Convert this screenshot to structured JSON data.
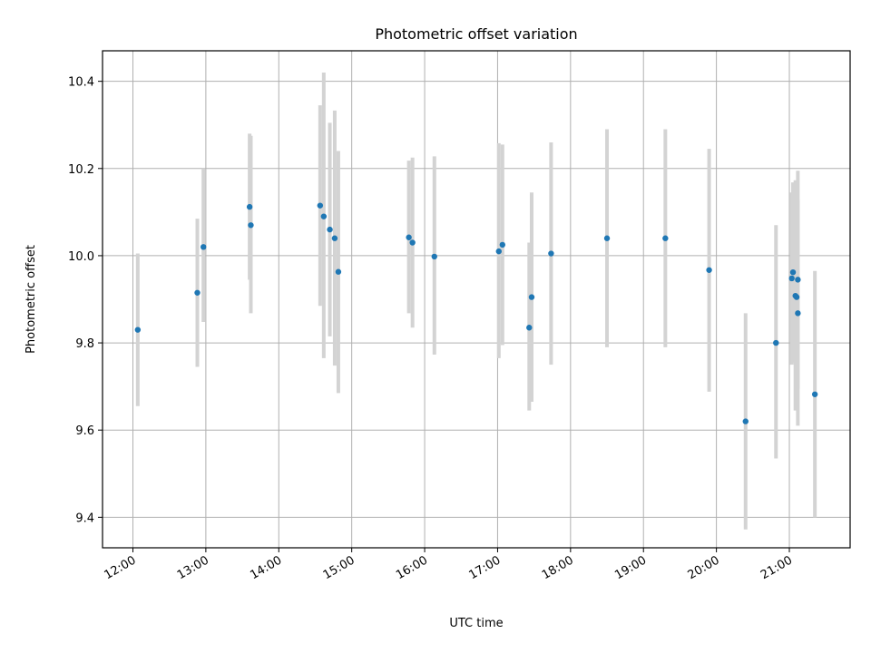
{
  "chart_data": {
    "type": "scatter",
    "title": "Photometric offset variation",
    "xlabel": "UTC time",
    "ylabel": "Photometric offset",
    "x_ticks": [
      "12:00",
      "13:00",
      "14:00",
      "15:00",
      "16:00",
      "17:00",
      "18:00",
      "19:00",
      "20:00",
      "21:00"
    ],
    "y_ticks": [
      "9.4",
      "9.6",
      "9.8",
      "10.0",
      "10.2",
      "10.4"
    ],
    "xlim": [
      "11:35",
      "21:50"
    ],
    "ylim": [
      9.33,
      10.47
    ],
    "grid": true,
    "series": [
      {
        "points": [
          {
            "t": "12:04",
            "y": 9.83,
            "lo": 9.655,
            "hi": 10.005
          },
          {
            "t": "12:53",
            "y": 9.915,
            "lo": 9.745,
            "hi": 10.085
          },
          {
            "t": "12:58",
            "y": 10.02,
            "lo": 9.848,
            "hi": 10.2
          },
          {
            "t": "13:36",
            "y": 10.112,
            "lo": 9.945,
            "hi": 10.28
          },
          {
            "t": "13:37",
            "y": 10.07,
            "lo": 9.868,
            "hi": 10.275
          },
          {
            "t": "14:34",
            "y": 10.115,
            "lo": 9.885,
            "hi": 10.345
          },
          {
            "t": "14:37",
            "y": 10.09,
            "lo": 9.765,
            "hi": 10.42
          },
          {
            "t": "14:42",
            "y": 10.06,
            "lo": 9.815,
            "hi": 10.305
          },
          {
            "t": "14:46",
            "y": 10.04,
            "lo": 9.748,
            "hi": 10.333
          },
          {
            "t": "14:49",
            "y": 9.963,
            "lo": 9.685,
            "hi": 10.24
          },
          {
            "t": "15:47",
            "y": 10.042,
            "lo": 9.868,
            "hi": 10.218
          },
          {
            "t": "15:50",
            "y": 10.03,
            "lo": 9.835,
            "hi": 10.225
          },
          {
            "t": "16:08",
            "y": 9.998,
            "lo": 9.773,
            "hi": 10.228
          },
          {
            "t": "17:01",
            "y": 10.01,
            "lo": 9.765,
            "hi": 10.258
          },
          {
            "t": "17:04",
            "y": 10.025,
            "lo": 9.795,
            "hi": 10.255
          },
          {
            "t": "17:26",
            "y": 9.835,
            "lo": 9.645,
            "hi": 10.03
          },
          {
            "t": "17:28",
            "y": 9.905,
            "lo": 9.665,
            "hi": 10.145
          },
          {
            "t": "17:44",
            "y": 10.005,
            "lo": 9.75,
            "hi": 10.26
          },
          {
            "t": "18:30",
            "y": 10.04,
            "lo": 9.79,
            "hi": 10.29
          },
          {
            "t": "19:18",
            "y": 10.04,
            "lo": 9.79,
            "hi": 10.29
          },
          {
            "t": "19:54",
            "y": 9.967,
            "lo": 9.688,
            "hi": 10.245
          },
          {
            "t": "20:24",
            "y": 9.62,
            "lo": 9.372,
            "hi": 9.868
          },
          {
            "t": "20:49",
            "y": 9.8,
            "lo": 9.535,
            "hi": 10.07
          },
          {
            "t": "21:02",
            "y": 9.948,
            "lo": 9.75,
            "hi": 10.145
          },
          {
            "t": "21:03",
            "y": 9.962,
            "lo": 9.755,
            "hi": 10.168
          },
          {
            "t": "21:05",
            "y": 9.908,
            "lo": 9.645,
            "hi": 10.173
          },
          {
            "t": "21:06",
            "y": 9.905,
            "lo": 9.7,
            "hi": 10.11
          },
          {
            "t": "21:07",
            "y": 9.868,
            "lo": 9.61,
            "hi": 10.128
          },
          {
            "t": "21:07",
            "y": 9.945,
            "lo": 9.695,
            "hi": 10.195
          },
          {
            "t": "21:21",
            "y": 9.682,
            "lo": 9.4,
            "hi": 9.965
          }
        ]
      }
    ]
  }
}
